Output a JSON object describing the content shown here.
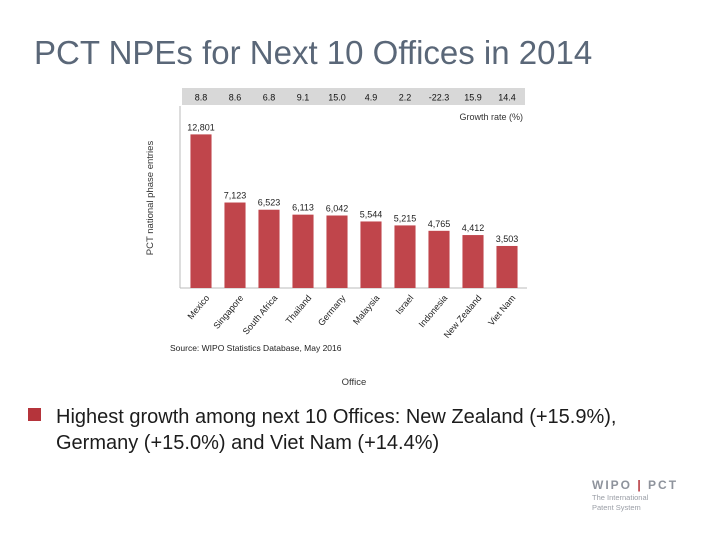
{
  "slide": {
    "title": "PCT NPEs for Next 10 Offices in 2014",
    "bullet": "Highest growth among next 10 Offices:  New Zealand (+15.9%), Germany (+15.0%) and Viet Nam (+14.4%)"
  },
  "logo": {
    "left": "WIPO",
    "right": "PCT",
    "separator": "|",
    "line1": "The International",
    "line2": "Patent System"
  },
  "colors": {
    "bar": "#c0454b",
    "header_band": "#d8d8d8",
    "bullet": "#b5343b"
  },
  "chart_data": {
    "type": "bar",
    "categories": [
      "Mexico",
      "Singapore",
      "South Africa",
      "Thailand",
      "Germany",
      "Malaysia",
      "Israel",
      "Indonesia",
      "New Zealand",
      "Viet Nam"
    ],
    "values": [
      12801,
      7123,
      6523,
      6113,
      6042,
      5544,
      5215,
      4765,
      4412,
      3503
    ],
    "value_labels": [
      "12,801",
      "7,123",
      "6,523",
      "6,113",
      "6,042",
      "5,544",
      "5,215",
      "4,765",
      "4,412",
      "3,503"
    ],
    "growth_rates": [
      "8.8",
      "8.6",
      "6.8",
      "9.1",
      "15.0",
      "4.9",
      "2.2",
      "-22.3",
      "15.9",
      "14.4"
    ],
    "growth_label": "Growth rate (%)",
    "ylabel": "PCT national phase entries",
    "xlabel": "Office",
    "source": "Source: WIPO Statistics Database, May 2016",
    "ylim": [
      0,
      14000
    ],
    "grid": false
  }
}
